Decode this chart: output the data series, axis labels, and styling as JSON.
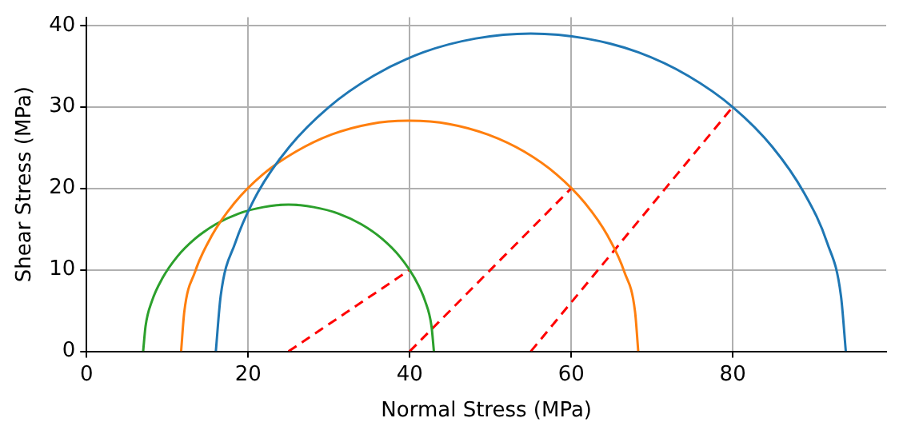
{
  "chart_data": {
    "type": "line",
    "xlabel": "Normal Stress (MPa)",
    "ylabel": "Shear Stress (MPa)",
    "xlim": [
      0,
      99
    ],
    "xticks": [
      0,
      20,
      40,
      60,
      80
    ],
    "ylim": [
      0,
      41
    ],
    "yticks": [
      0,
      10,
      20,
      30,
      40
    ],
    "grid": true,
    "legend": false,
    "series": [
      {
        "color": "#1f77b4",
        "line_style": "solid",
        "x": [
          16,
          16.6,
          18.4,
          21.2,
          25.1,
          29.9,
          35.5,
          41.7,
          48.2,
          55,
          61.8,
          68.3,
          74.5,
          80.1,
          84.9,
          88.8,
          91.7,
          93.4,
          94
        ],
        "values": [
          0,
          6.8,
          13.3,
          19.5,
          25.1,
          29.9,
          33.8,
          36.7,
          38.4,
          39,
          38.4,
          36.7,
          33.8,
          29.9,
          25.1,
          19.5,
          13.3,
          6.8,
          0
        ]
      },
      {
        "color": "#ff7f0e",
        "line_style": "solid",
        "x": [
          11.7,
          12.1,
          13.4,
          15.5,
          18.3,
          21.8,
          25.9,
          30.3,
          35.1,
          40,
          44.9,
          49.7,
          54.2,
          58.2,
          61.7,
          64.5,
          66.6,
          67.9,
          68.3
        ],
        "values": [
          0,
          4.9,
          9.7,
          14.2,
          18.2,
          21.7,
          24.5,
          26.6,
          27.9,
          28.3,
          27.9,
          26.6,
          24.5,
          21.7,
          18.2,
          14.2,
          9.7,
          4.9,
          0
        ]
      },
      {
        "color": "#2ca02c",
        "line_style": "solid",
        "x": [
          7,
          7.3,
          8.1,
          9.4,
          11.2,
          13.4,
          16,
          18.8,
          21.9,
          25,
          28.1,
          31.2,
          34,
          36.6,
          38.8,
          40.6,
          41.9,
          42.7,
          43
        ],
        "values": [
          0,
          3.1,
          6.2,
          9,
          11.6,
          13.8,
          15.6,
          16.9,
          17.7,
          18,
          17.7,
          16.9,
          15.6,
          13.8,
          11.6,
          9,
          6.2,
          3.1,
          0
        ]
      },
      {
        "color": "#ff0000",
        "line_style": "dashed",
        "x": [
          25,
          40
        ],
        "values": [
          0,
          10
        ]
      },
      {
        "color": "#ff0000",
        "line_style": "dashed",
        "x": [
          40,
          60
        ],
        "values": [
          0,
          20
        ]
      },
      {
        "color": "#ff0000",
        "line_style": "dashed",
        "x": [
          55,
          80
        ],
        "values": [
          0,
          30
        ]
      }
    ]
  }
}
